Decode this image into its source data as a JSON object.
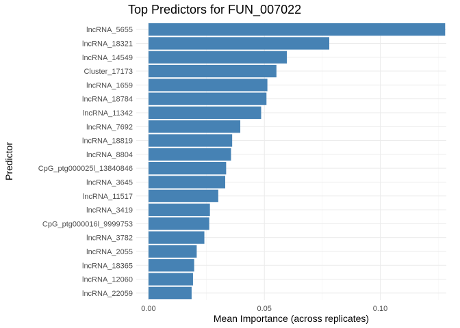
{
  "chart_data": {
    "type": "bar",
    "orientation": "horizontal",
    "title": "Top Predictors for FUN_007022",
    "xlabel": "Mean Importance (across replicates)",
    "ylabel": "Predictor",
    "xlim": [
      0,
      0.1285
    ],
    "xticks": [
      0.0,
      0.05,
      0.1
    ],
    "xtick_labels": [
      "0.00",
      "0.05",
      "0.10"
    ],
    "bar_color": "#4682B4",
    "grid": true,
    "categories": [
      "lncRNA_5655",
      "lncRNA_18321",
      "lncRNA_14549",
      "Cluster_17173",
      "lncRNA_1659",
      "lncRNA_18784",
      "lncRNA_11342",
      "lncRNA_7692",
      "lncRNA_18819",
      "lncRNA_8804",
      "CpG_ptg000025l_13840846",
      "lncRNA_3645",
      "lncRNA_11517",
      "lncRNA_3419",
      "CpG_ptg000016l_9999753",
      "lncRNA_3782",
      "lncRNA_2055",
      "lncRNA_18365",
      "lncRNA_12060",
      "lncRNA_22059"
    ],
    "values": [
      0.128,
      0.078,
      0.0597,
      0.0552,
      0.0513,
      0.0509,
      0.0486,
      0.0396,
      0.0361,
      0.0356,
      0.0335,
      0.0331,
      0.0301,
      0.0265,
      0.0262,
      0.0241,
      0.0208,
      0.0197,
      0.0192,
      0.0186
    ]
  }
}
